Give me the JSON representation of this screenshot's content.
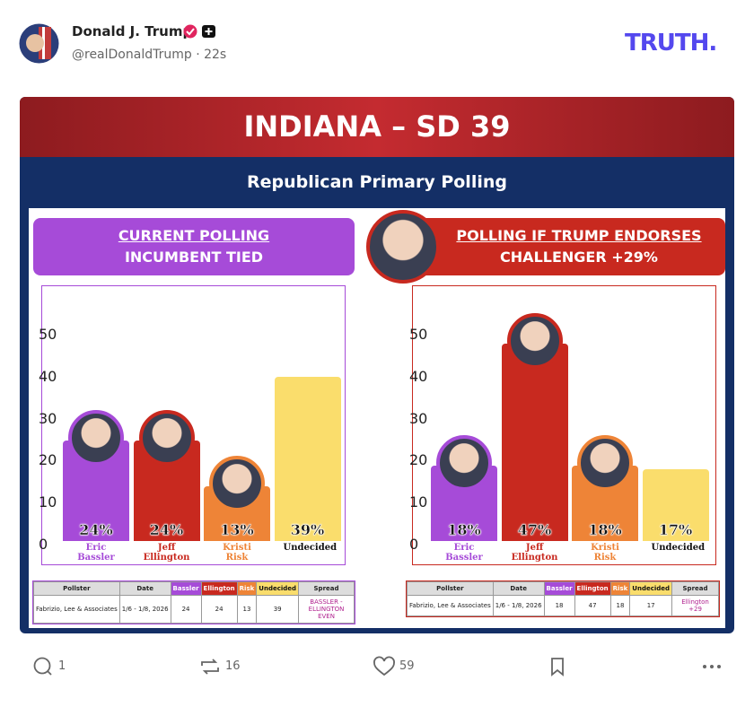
{
  "post": {
    "author": "Donald J. Trump",
    "handle": "@realDonaldTrump · 22s",
    "brand": "TRUTH."
  },
  "graphic": {
    "title": "INDIANA – SD 39",
    "subtitle": "Republican Primary Polling",
    "panels": [
      {
        "heading": "CURRENT POLLING",
        "subheading": "INCUMBENT TIED"
      },
      {
        "heading": "POLLING IF TRUMP ENDORSES",
        "subheading": "CHALLENGER +29%"
      }
    ]
  },
  "chart_data": [
    {
      "type": "bar",
      "categories": [
        "Eric Bassler",
        "Jeff Ellington",
        "Kristi Risk",
        "Undecided"
      ],
      "values": [
        24,
        24,
        13,
        39
      ],
      "value_labels": [
        "24%",
        "24%",
        "13%",
        "39%"
      ],
      "colors": [
        "#a64bd8",
        "#c8291f",
        "#ee8437",
        "#fadd6c"
      ],
      "label_colors": [
        "#a64bd8",
        "#c8291f",
        "#ee8437",
        "#111111"
      ],
      "ylim": [
        0,
        60
      ],
      "yticks": [
        0,
        10,
        20,
        30,
        40,
        50
      ]
    },
    {
      "type": "bar",
      "categories": [
        "Eric Bassler",
        "Jeff Ellington",
        "Kristi Risk",
        "Undecided"
      ],
      "values": [
        18,
        47,
        18,
        17
      ],
      "value_labels": [
        "18%",
        "47%",
        "18%",
        "17%"
      ],
      "colors": [
        "#a64bd8",
        "#c8291f",
        "#ee8437",
        "#fadd6c"
      ],
      "label_colors": [
        "#a64bd8",
        "#c8291f",
        "#ee8437",
        "#111111"
      ],
      "ylim": [
        0,
        60
      ],
      "yticks": [
        0,
        10,
        20,
        30,
        40,
        50
      ]
    }
  ],
  "tables": [
    {
      "columns": [
        "Pollster",
        "Date",
        "Bassler",
        "Ellington",
        "Risk",
        "Undecided",
        "Spread"
      ],
      "rows": [
        [
          "Fabrizio, Lee & Associates",
          "1/6 - 1/8, 2026",
          "24",
          "24",
          "13",
          "39",
          "BASSLER - ELLINGTON EVEN"
        ]
      ]
    },
    {
      "columns": [
        "Pollster",
        "Date",
        "Bassler",
        "Ellington",
        "Risk",
        "Undecided",
        "Spread"
      ],
      "rows": [
        [
          "Fabrizio, Lee & Associates",
          "1/6 - 1/8, 2026",
          "18",
          "47",
          "18",
          "17",
          "Ellington +29"
        ]
      ]
    }
  ],
  "actions": {
    "replies": 1,
    "retruths": 16,
    "likes": 59
  }
}
